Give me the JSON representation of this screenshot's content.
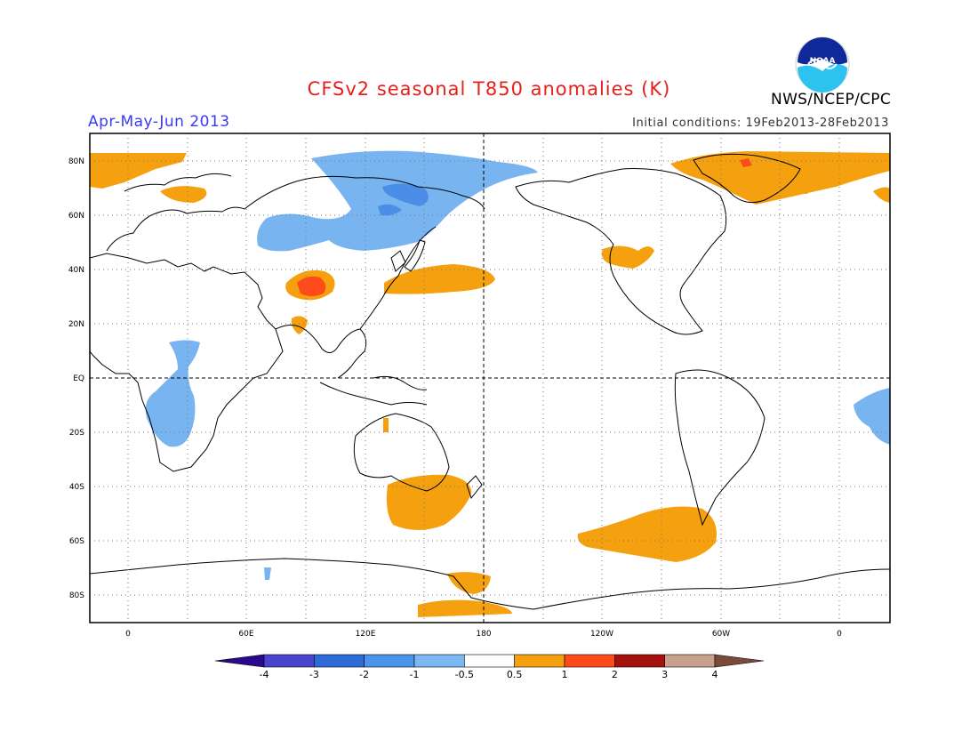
{
  "header": {
    "title": "CFSv2 seasonal T850 anomalies (K)",
    "period": "Apr-May-Jun 2013",
    "initial_conditions": "Initial conditions: 19Feb2013-28Feb2013",
    "agency": "NWS/NCEP/CPC",
    "logo_text": "NOAA"
  },
  "map": {
    "lat_labels": [
      "80N",
      "60N",
      "40N",
      "20N",
      "EQ",
      "20S",
      "40S",
      "60S",
      "80S"
    ],
    "lon_labels": [
      "0",
      "60E",
      "120E",
      "180",
      "120W",
      "60W",
      "0"
    ],
    "colors": {
      "warm_1": "#f5a10f",
      "warm_2": "#ff4a1a",
      "cool_1": "#78b4f0",
      "cool_2": "#4b8ee8"
    }
  },
  "colorbar": {
    "labels": [
      "-4",
      "-3",
      "-2",
      "-1",
      "-0.5",
      "0.5",
      "1",
      "2",
      "3",
      "4"
    ],
    "colors": [
      "#2a0a8c",
      "#4a44cc",
      "#2d6bd6",
      "#4b94ea",
      "#7cb8f4",
      "#ffffff",
      "#f5a10f",
      "#ff4a1a",
      "#a5120c",
      "#c7a08e",
      "#7a4a3a"
    ]
  }
}
